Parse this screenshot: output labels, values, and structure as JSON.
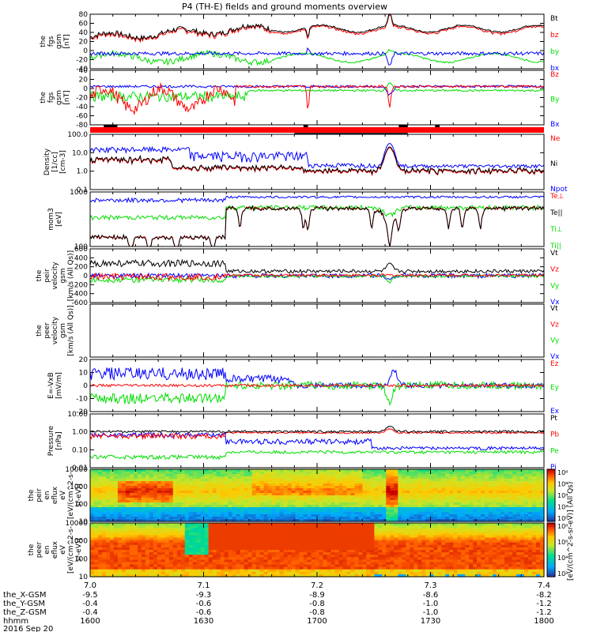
{
  "title": "P4 (TH-E) fields and ground moments overview",
  "date_label": "2016 Sep 20",
  "colors": {
    "black": "#000000",
    "red": "#ff0000",
    "green": "#00dd00",
    "blue": "#0000ff",
    "bar_red": "#ff0000"
  },
  "chart_data": [
    {
      "type": "line",
      "ylabel": [
        "the",
        "fgs",
        "gsm",
        "[nT]"
      ],
      "yticks": [
        80,
        60,
        40,
        20,
        0,
        -20,
        -40
      ],
      "ylim": [
        -40,
        85
      ],
      "legend": [
        {
          "name": "Bt",
          "color": "#000000"
        },
        {
          "name": "bz",
          "color": "#ff0000"
        },
        {
          "name": "by",
          "color": "#00dd00"
        },
        {
          "name": "bx",
          "color": "#0000ff"
        }
      ]
    },
    {
      "type": "line",
      "ylabel": [
        "the",
        "fgs",
        "gsm",
        "[nT]"
      ],
      "yticks": [
        40,
        20,
        0,
        -20,
        -40,
        -60,
        -80
      ],
      "ylim": [
        -90,
        45
      ],
      "legend": [
        {
          "name": "Bz",
          "color": "#ff0000"
        },
        {
          "name": "By",
          "color": "#00dd00"
        },
        {
          "name": "Bx",
          "color": "#0000ff"
        }
      ]
    },
    {
      "type": "line",
      "ylabel": [
        "Density",
        "[1/cc]",
        "[cm-3]"
      ],
      "yticks": [
        "100.0",
        "10.0",
        "1.0",
        "0.1"
      ],
      "scale": "log",
      "ylim": [
        0.1,
        100
      ],
      "legend": [
        {
          "name": "Ne",
          "color": "#ff0000"
        },
        {
          "name": "Ni",
          "color": "#000000"
        },
        {
          "name": "Npot",
          "color": "#0000ff"
        }
      ]
    },
    {
      "type": "line",
      "ylabel": [
        "mom3",
        "[eV]"
      ],
      "yticks": [
        "1000",
        "100"
      ],
      "scale": "log",
      "ylim": [
        50,
        8000
      ],
      "legend": [
        {
          "name": "Te⊥",
          "color": "#ff0000"
        },
        {
          "name": "Te||",
          "color": "#000000"
        },
        {
          "name": "Ti⊥",
          "color": "#00dd00"
        },
        {
          "name": "Ti||",
          "color": "#00dd00"
        }
      ]
    },
    {
      "type": "line",
      "ylabel": [
        "the",
        "peir",
        "velocity",
        "gsm",
        "[km/s (All Qs)]"
      ],
      "yticks": [
        600,
        400,
        200,
        0,
        -200,
        -400,
        -600
      ],
      "ylim": [
        -600,
        600
      ],
      "legend": [
        {
          "name": "Vt",
          "color": "#000000"
        },
        {
          "name": "Vz",
          "color": "#ff0000"
        },
        {
          "name": "Vy",
          "color": "#00dd00"
        },
        {
          "name": "Vx",
          "color": "#0000ff"
        }
      ]
    },
    {
      "type": "line",
      "ylabel": [
        "the",
        "peer",
        "velocity",
        "gsm",
        "[km/s (All Qs)]"
      ],
      "yticks": [],
      "legend": [
        {
          "name": "Vt",
          "color": "#000000"
        },
        {
          "name": "Vz",
          "color": "#ff0000"
        },
        {
          "name": "Vy",
          "color": "#00dd00"
        },
        {
          "name": "Vx",
          "color": "#0000ff"
        }
      ]
    },
    {
      "type": "line",
      "ylabel": [
        "E=-VxB",
        "[mV/m]"
      ],
      "yticks": [
        20,
        10,
        0,
        -10,
        -20
      ],
      "ylim": [
        -20,
        20
      ],
      "legend": [
        {
          "name": "Ez",
          "color": "#ff0000"
        },
        {
          "name": "Ey",
          "color": "#00dd00"
        },
        {
          "name": "Ex",
          "color": "#0000ff"
        }
      ]
    },
    {
      "type": "line",
      "ylabel": [
        "Pressure",
        "[nPa]"
      ],
      "yticks": [
        "10.00",
        "1.00",
        "0.10",
        "0.01"
      ],
      "scale": "log",
      "ylim": [
        0.01,
        10
      ],
      "legend": [
        {
          "name": "Pt",
          "color": "#000000"
        },
        {
          "name": "Pb",
          "color": "#ff0000"
        },
        {
          "name": "Pe",
          "color": "#00dd00"
        },
        {
          "name": "Pi",
          "color": "#0000ff"
        }
      ]
    },
    {
      "type": "heatmap",
      "ylabel": [
        "the",
        "peir",
        "en",
        "eflux",
        "eV",
        "[eV/(cm^2-s-",
        "sr-eV)]"
      ],
      "yticks": [
        "10000",
        "1000",
        "100",
        "10"
      ]
    },
    {
      "type": "heatmap",
      "ylabel": [
        "the",
        "peer",
        "en",
        "eflux",
        "eV",
        "[eV/(cm^2-s-",
        "sr-eV)]"
      ],
      "yticks": [
        "10000",
        "1000",
        "100",
        "10"
      ]
    }
  ],
  "colorbar": {
    "label": "[eV/(cm^2-s-sr-eV)] (All Qs)",
    "ticks1": [
      "10⁸",
      "10⁶",
      "10⁴",
      "10²",
      "10⁰"
    ],
    "ticks2": [
      "10⁸",
      "10⁶",
      "10⁴",
      "10²"
    ]
  },
  "x_axis": {
    "ticks": [
      "7.0",
      "7.1",
      "7.2",
      "7.3",
      "7.4"
    ],
    "rows": [
      {
        "label": "the_X-GSM",
        "values": [
          "-9.5",
          "-9.3",
          "-8.9",
          "-8.6",
          "-8.2"
        ]
      },
      {
        "label": "the_Y-GSM",
        "values": [
          "-0.4",
          "-0.6",
          "-0.8",
          "-1.0",
          "-1.2"
        ]
      },
      {
        "label": "the_Z-GSM",
        "values": [
          "-0.4",
          "-0.6",
          "-0.8",
          "-1.0",
          "-1.2"
        ]
      },
      {
        "label": "hhmm",
        "values": [
          "1600",
          "1630",
          "1700",
          "1730",
          "1800"
        ]
      }
    ]
  }
}
